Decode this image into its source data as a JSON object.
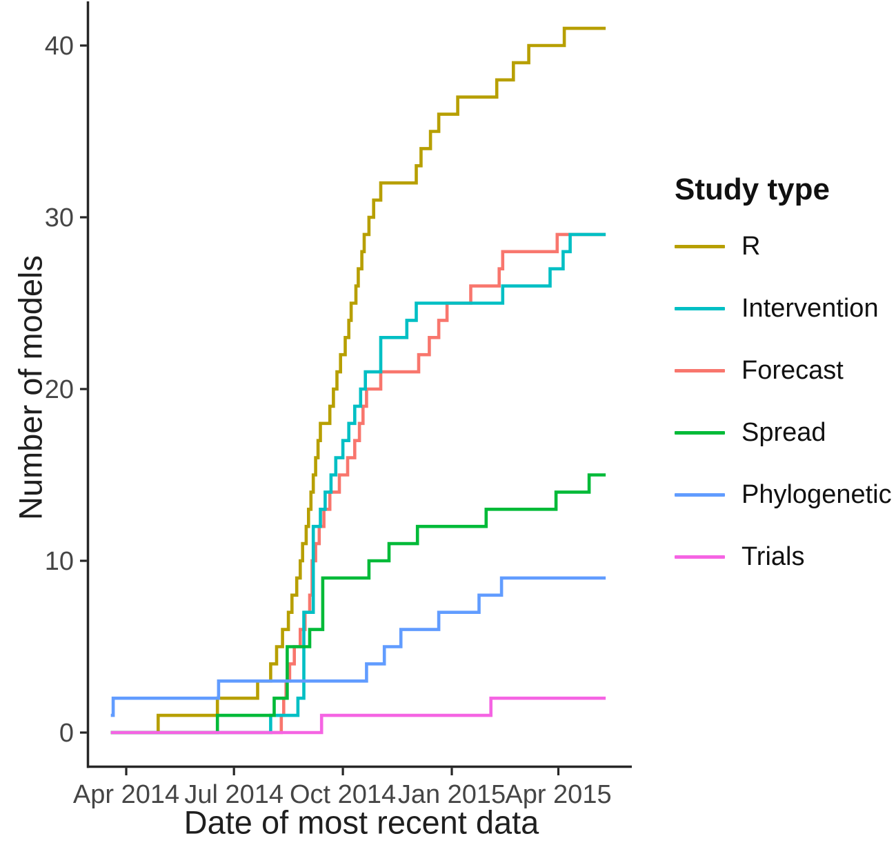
{
  "chart_data": {
    "type": "line",
    "subtype": "cumulative-step",
    "title": "",
    "xlabel": "Date of most recent data",
    "ylabel": "Number of models",
    "legend_title": "Study type",
    "legend_position": "right",
    "grid": false,
    "ylim": [
      0,
      41
    ],
    "y_ticks": [
      0,
      10,
      20,
      30,
      40
    ],
    "x_ticks": [
      {
        "date": "2014-04-01",
        "label": "Apr 2014"
      },
      {
        "date": "2014-07-01",
        "label": "Jul 2014"
      },
      {
        "date": "2014-10-01",
        "label": "Oct 2014"
      },
      {
        "date": "2015-01-01",
        "label": "Jan 2015"
      },
      {
        "date": "2015-04-01",
        "label": "Apr 2015"
      }
    ],
    "x_start": "2014-03-19",
    "x_end": "2015-05-11",
    "draw_order": [
      "R",
      "Forecast",
      "Intervention",
      "Spread",
      "Phylogenetic",
      "Trials"
    ],
    "series": [
      {
        "name": "R",
        "color": "#B79F00",
        "points": [
          [
            "2014-03-19",
            0
          ],
          [
            "2014-04-28",
            1
          ],
          [
            "2014-06-17",
            2
          ],
          [
            "2014-07-21",
            3
          ],
          [
            "2014-08-01",
            4
          ],
          [
            "2014-08-06",
            5
          ],
          [
            "2014-08-11",
            6
          ],
          [
            "2014-08-16",
            7
          ],
          [
            "2014-08-19",
            8
          ],
          [
            "2014-08-23",
            9
          ],
          [
            "2014-08-26",
            10
          ],
          [
            "2014-08-28",
            11
          ],
          [
            "2014-08-31",
            12
          ],
          [
            "2014-09-02",
            13
          ],
          [
            "2014-09-04",
            14
          ],
          [
            "2014-09-06",
            15
          ],
          [
            "2014-09-08",
            16
          ],
          [
            "2014-09-10",
            17
          ],
          [
            "2014-09-12",
            18
          ],
          [
            "2014-09-20",
            19
          ],
          [
            "2014-09-23",
            20
          ],
          [
            "2014-09-26",
            21
          ],
          [
            "2014-09-29",
            22
          ],
          [
            "2014-10-03",
            23
          ],
          [
            "2014-10-06",
            24
          ],
          [
            "2014-10-08",
            25
          ],
          [
            "2014-10-12",
            26
          ],
          [
            "2014-10-14",
            27
          ],
          [
            "2014-10-17",
            28
          ],
          [
            "2014-10-19",
            29
          ],
          [
            "2014-10-23",
            30
          ],
          [
            "2014-10-27",
            31
          ],
          [
            "2014-11-02",
            32
          ],
          [
            "2014-12-02",
            33
          ],
          [
            "2014-12-06",
            34
          ],
          [
            "2014-12-14",
            35
          ],
          [
            "2014-12-21",
            36
          ],
          [
            "2015-01-06",
            37
          ],
          [
            "2015-02-08",
            38
          ],
          [
            "2015-02-22",
            39
          ],
          [
            "2015-03-07",
            40
          ],
          [
            "2015-04-06",
            41
          ]
        ]
      },
      {
        "name": "Intervention",
        "color": "#00BFC4",
        "points": [
          [
            "2014-03-19",
            0
          ],
          [
            "2014-08-01",
            1
          ],
          [
            "2014-08-24",
            2
          ],
          [
            "2014-08-29",
            7
          ],
          [
            "2014-09-06",
            12
          ],
          [
            "2014-09-12",
            13
          ],
          [
            "2014-09-16",
            14
          ],
          [
            "2014-09-21",
            15
          ],
          [
            "2014-09-25",
            16
          ],
          [
            "2014-10-01",
            17
          ],
          [
            "2014-10-06",
            18
          ],
          [
            "2014-10-11",
            19
          ],
          [
            "2014-10-16",
            20
          ],
          [
            "2014-10-20",
            21
          ],
          [
            "2014-11-02",
            23
          ],
          [
            "2014-11-24",
            24
          ],
          [
            "2014-12-02",
            25
          ],
          [
            "2015-02-13",
            26
          ],
          [
            "2015-03-25",
            27
          ],
          [
            "2015-04-05",
            28
          ],
          [
            "2015-04-11",
            29
          ]
        ]
      },
      {
        "name": "Forecast",
        "color": "#F8766D",
        "points": [
          [
            "2014-03-19",
            0
          ],
          [
            "2014-08-10",
            1
          ],
          [
            "2014-08-12",
            2
          ],
          [
            "2014-08-14",
            3
          ],
          [
            "2014-08-17",
            4
          ],
          [
            "2014-08-21",
            5
          ],
          [
            "2014-08-26",
            6
          ],
          [
            "2014-08-30",
            7
          ],
          [
            "2014-09-03",
            8
          ],
          [
            "2014-09-05",
            10
          ],
          [
            "2014-09-08",
            11
          ],
          [
            "2014-09-11",
            12
          ],
          [
            "2014-09-15",
            13
          ],
          [
            "2014-09-20",
            14
          ],
          [
            "2014-09-28",
            15
          ],
          [
            "2014-10-05",
            16
          ],
          [
            "2014-10-11",
            17
          ],
          [
            "2014-10-15",
            18
          ],
          [
            "2014-10-18",
            19
          ],
          [
            "2014-10-21",
            20
          ],
          [
            "2014-11-02",
            21
          ],
          [
            "2014-12-04",
            22
          ],
          [
            "2014-12-13",
            23
          ],
          [
            "2014-12-21",
            24
          ],
          [
            "2014-12-28",
            25
          ],
          [
            "2015-01-17",
            26
          ],
          [
            "2015-02-10",
            27
          ],
          [
            "2015-02-13",
            28
          ],
          [
            "2015-03-31",
            29
          ]
        ]
      },
      {
        "name": "Spread",
        "color": "#00BA38",
        "points": [
          [
            "2014-03-19",
            0
          ],
          [
            "2014-06-17",
            1
          ],
          [
            "2014-08-04",
            2
          ],
          [
            "2014-08-15",
            5
          ],
          [
            "2014-09-03",
            6
          ],
          [
            "2014-09-14",
            9
          ],
          [
            "2014-10-23",
            10
          ],
          [
            "2014-11-09",
            11
          ],
          [
            "2014-12-03",
            12
          ],
          [
            "2015-01-30",
            13
          ],
          [
            "2015-03-30",
            14
          ],
          [
            "2015-04-27",
            15
          ]
        ]
      },
      {
        "name": "Phylogenetic",
        "color": "#619CFF",
        "points": [
          [
            "2014-03-19",
            1
          ],
          [
            "2014-03-21",
            2
          ],
          [
            "2014-06-18",
            3
          ],
          [
            "2014-10-21",
            4
          ],
          [
            "2014-11-05",
            5
          ],
          [
            "2014-11-19",
            6
          ],
          [
            "2014-12-21",
            7
          ],
          [
            "2015-01-24",
            8
          ],
          [
            "2015-02-12",
            9
          ]
        ]
      },
      {
        "name": "Trials",
        "color": "#F564E3",
        "points": [
          [
            "2014-03-19",
            0
          ],
          [
            "2014-09-13",
            1
          ],
          [
            "2015-02-03",
            2
          ]
        ]
      }
    ]
  }
}
